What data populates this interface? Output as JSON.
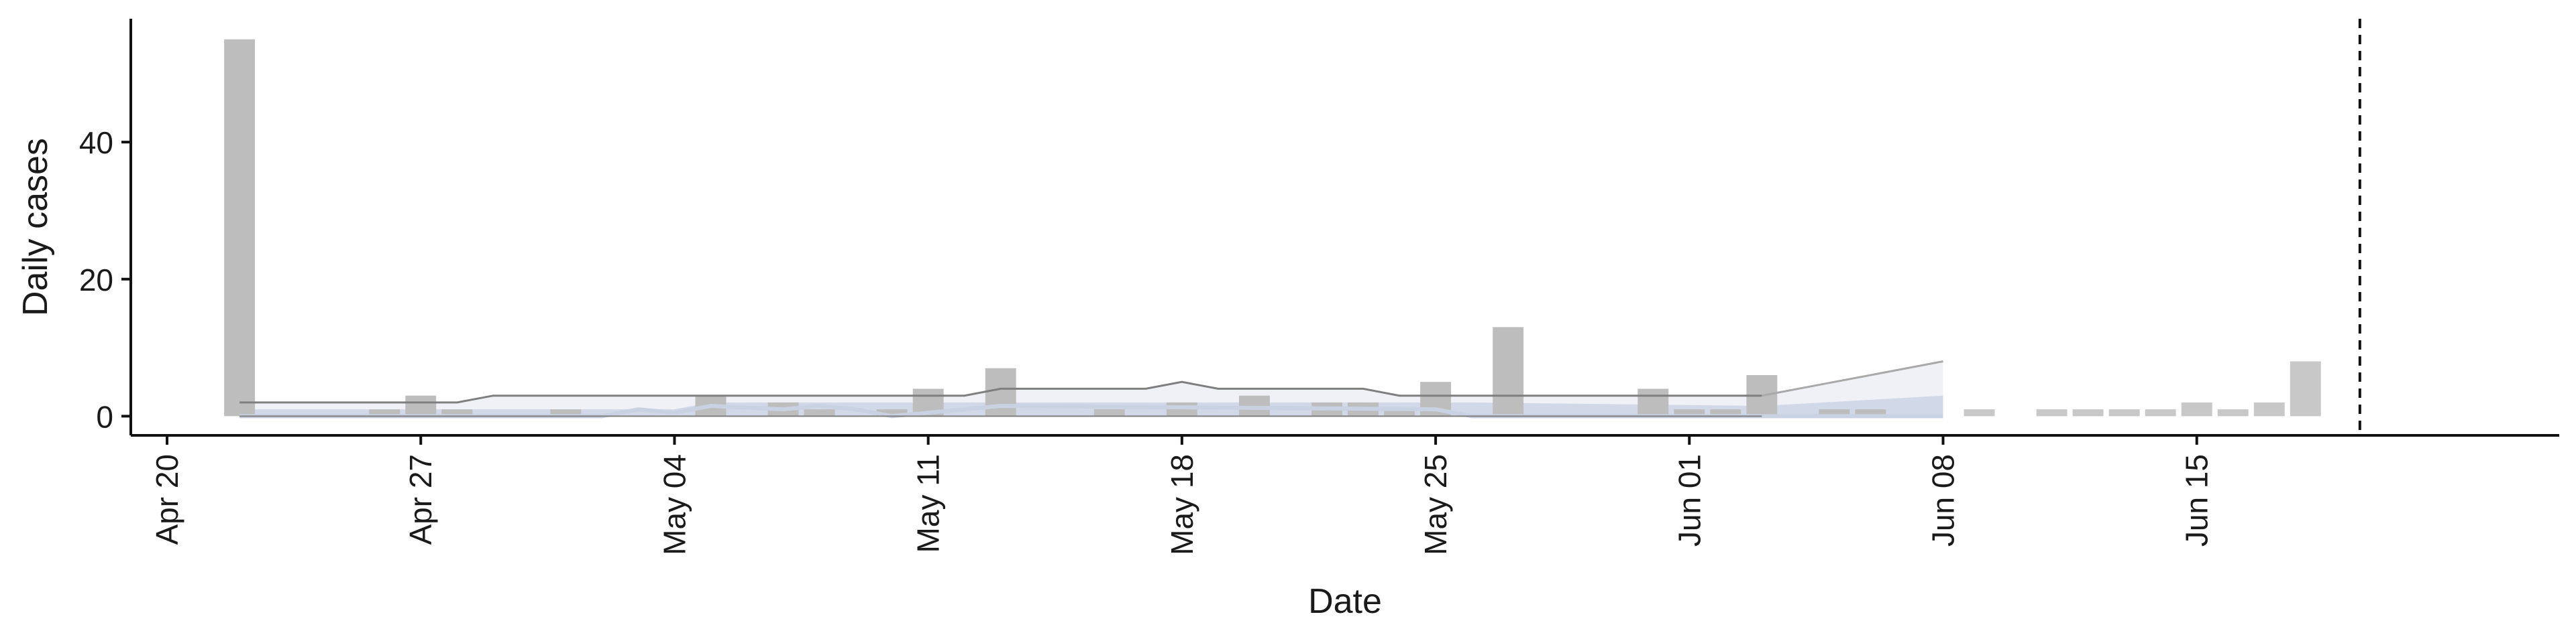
{
  "chart_data": {
    "type": "bar",
    "xlabel": "Date",
    "ylabel": "Daily cases",
    "ylim": [
      -2.8,
      58
    ],
    "xlim": [
      "2020-04-19",
      "2020-06-25"
    ],
    "x_ticks": [
      "2020-04-20",
      "2020-04-27",
      "2020-05-04",
      "2020-05-11",
      "2020-05-18",
      "2020-05-25",
      "2020-06-01",
      "2020-06-08",
      "2020-06-15"
    ],
    "x_tick_labels": [
      "Apr 20",
      "Apr 27",
      "May 04",
      "May 11",
      "May 18",
      "May 25",
      "Jun 01",
      "Jun 08",
      "Jun 15"
    ],
    "y_ticks": [
      0,
      20,
      40
    ],
    "y_tick_labels": [
      "0",
      "20",
      "40"
    ],
    "grid": false,
    "vline": {
      "date": "2020-06-19",
      "style": "dashed"
    },
    "colors": {
      "bars": "#bdbdbd",
      "bars_projection": "#c8c8c8",
      "band_outer": "#eceff5",
      "band_inner": "#c9d2e3",
      "median_line": "#7f7f7f",
      "projection_line": "#a9a9a9"
    },
    "bars": [
      {
        "date": "2020-04-22",
        "value": 55
      },
      {
        "date": "2020-04-26",
        "value": 1
      },
      {
        "date": "2020-04-27",
        "value": 3
      },
      {
        "date": "2020-04-28",
        "value": 1
      },
      {
        "date": "2020-05-01",
        "value": 1
      },
      {
        "date": "2020-05-05",
        "value": 3
      },
      {
        "date": "2020-05-07",
        "value": 2
      },
      {
        "date": "2020-05-08",
        "value": 1
      },
      {
        "date": "2020-05-10",
        "value": 1
      },
      {
        "date": "2020-05-11",
        "value": 4
      },
      {
        "date": "2020-05-13",
        "value": 7
      },
      {
        "date": "2020-05-16",
        "value": 1
      },
      {
        "date": "2020-05-18",
        "value": 2
      },
      {
        "date": "2020-05-20",
        "value": 3
      },
      {
        "date": "2020-05-22",
        "value": 2
      },
      {
        "date": "2020-05-23",
        "value": 2
      },
      {
        "date": "2020-05-24",
        "value": 1
      },
      {
        "date": "2020-05-25",
        "value": 5
      },
      {
        "date": "2020-05-27",
        "value": 13
      },
      {
        "date": "2020-05-31",
        "value": 4
      },
      {
        "date": "2020-06-01",
        "value": 1
      },
      {
        "date": "2020-06-02",
        "value": 1
      },
      {
        "date": "2020-06-03",
        "value": 6
      },
      {
        "date": "2020-06-05",
        "value": 1
      },
      {
        "date": "2020-06-06",
        "value": 1
      },
      {
        "date": "2020-06-09",
        "value": 1
      },
      {
        "date": "2020-06-11",
        "value": 1
      },
      {
        "date": "2020-06-12",
        "value": 1
      },
      {
        "date": "2020-06-13",
        "value": 1
      },
      {
        "date": "2020-06-14",
        "value": 1
      },
      {
        "date": "2020-06-15",
        "value": 2
      },
      {
        "date": "2020-06-16",
        "value": 1
      },
      {
        "date": "2020-06-17",
        "value": 2
      },
      {
        "date": "2020-06-18",
        "value": 8
      }
    ],
    "series": [
      {
        "role": "upper_line",
        "points": [
          [
            "2020-04-22",
            2
          ],
          [
            "2020-04-28",
            2
          ],
          [
            "2020-04-29",
            3
          ],
          [
            "2020-05-11",
            3
          ],
          [
            "2020-05-12",
            3
          ],
          [
            "2020-05-13",
            4
          ],
          [
            "2020-05-17",
            4
          ],
          [
            "2020-05-18",
            5
          ],
          [
            "2020-05-19",
            4
          ],
          [
            "2020-05-23",
            4
          ],
          [
            "2020-05-24",
            3
          ],
          [
            "2020-06-03",
            3
          ],
          [
            "2020-06-08",
            8
          ]
        ]
      },
      {
        "role": "outer_band",
        "upper": [
          [
            "2020-04-22",
            2
          ],
          [
            "2020-04-28",
            2
          ],
          [
            "2020-04-29",
            3
          ],
          [
            "2020-05-12",
            3
          ],
          [
            "2020-05-13",
            4
          ],
          [
            "2020-05-17",
            4
          ],
          [
            "2020-05-18",
            5
          ],
          [
            "2020-05-19",
            4
          ],
          [
            "2020-05-23",
            4
          ],
          [
            "2020-05-24",
            3
          ],
          [
            "2020-06-03",
            3
          ],
          [
            "2020-06-08",
            8
          ]
        ],
        "lower": [
          [
            "2020-04-22",
            0
          ],
          [
            "2020-06-08",
            0
          ]
        ]
      },
      {
        "role": "inner_band",
        "upper": [
          [
            "2020-04-22",
            1
          ],
          [
            "2020-05-04",
            1
          ],
          [
            "2020-05-05",
            2
          ],
          [
            "2020-05-26",
            2
          ],
          [
            "2020-06-03",
            1.5
          ],
          [
            "2020-06-08",
            3
          ]
        ],
        "lower": [
          [
            "2020-04-22",
            0
          ],
          [
            "2020-06-08",
            0
          ]
        ]
      },
      {
        "role": "median_line",
        "points": [
          [
            "2020-04-22",
            0
          ],
          [
            "2020-05-02",
            0
          ],
          [
            "2020-05-03",
            1
          ],
          [
            "2020-05-04",
            0.5
          ],
          [
            "2020-05-05",
            1.5
          ],
          [
            "2020-05-07",
            1
          ],
          [
            "2020-05-08",
            1.5
          ],
          [
            "2020-05-09",
            1
          ],
          [
            "2020-05-10",
            0
          ],
          [
            "2020-05-12",
            1
          ],
          [
            "2020-05-13",
            1.5
          ],
          [
            "2020-05-25",
            1
          ],
          [
            "2020-05-26",
            0
          ],
          [
            "2020-06-08",
            0
          ]
        ]
      }
    ]
  }
}
